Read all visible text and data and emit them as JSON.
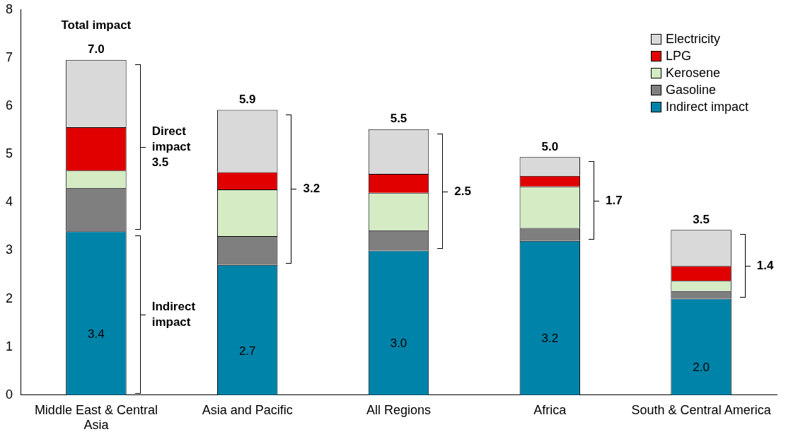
{
  "chart_data": {
    "type": "bar",
    "stacked": true,
    "categories": [
      "Middle East & Central Asia",
      "Asia and Pacific",
      "All Regions",
      "Africa",
      "South & Central America"
    ],
    "series": [
      {
        "name": "Indirect impact",
        "color": "#0083a8",
        "values": [
          3.4,
          2.7,
          3.0,
          3.2,
          2.0
        ],
        "value_labels": [
          "3.4",
          "2.7",
          "3.0",
          "3.2",
          "2.0"
        ]
      },
      {
        "name": "Gasoline",
        "color": "#7f7f7f",
        "values": [
          0.9,
          0.6,
          0.42,
          0.27,
          0.16
        ]
      },
      {
        "name": "Kerosene",
        "color": "#d4ebc4",
        "values": [
          0.36,
          0.97,
          0.78,
          0.86,
          0.21
        ]
      },
      {
        "name": "LPG",
        "color": "#e00000",
        "values": [
          0.9,
          0.36,
          0.39,
          0.22,
          0.31
        ]
      },
      {
        "name": "Electricity",
        "color": "#d9d9d9",
        "values": [
          1.4,
          1.29,
          0.93,
          0.39,
          0.75
        ]
      }
    ],
    "totals": [
      "7.0",
      "5.9",
      "5.5",
      "5.0",
      "3.5"
    ],
    "annotations": [
      "Total impact",
      "Direct impact 3.5",
      "Indirect impact",
      "3.2",
      "2.5",
      "1.7",
      "1.4"
    ],
    "ylim": [
      0,
      8
    ],
    "yticks": [
      0,
      1,
      2,
      3,
      4,
      5,
      6,
      7,
      8
    ],
    "grid": false,
    "legend": "top right"
  }
}
